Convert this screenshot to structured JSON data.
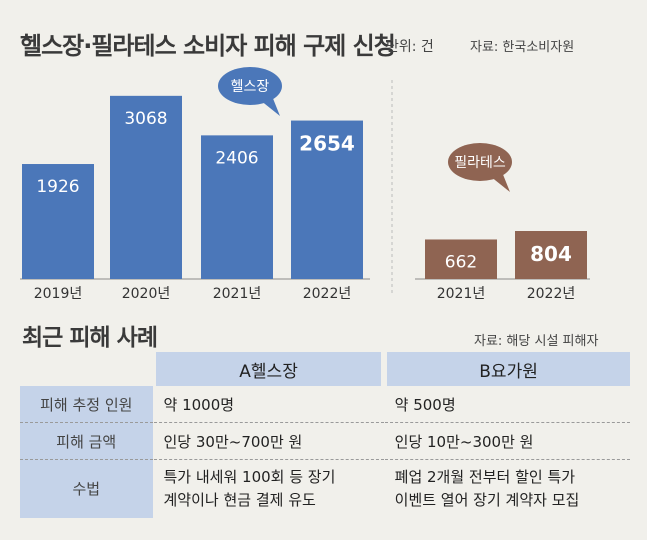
{
  "header": {
    "title": "헬스장·필라테스 소비자 피해 구제 신청",
    "unit": "단위: 건",
    "source": "자료: 한국소비자원"
  },
  "chart_data": [
    {
      "type": "bar",
      "name": "헬스장",
      "categories": [
        "2019년",
        "2020년",
        "2021년",
        "2022년"
      ],
      "values": [
        1926,
        3068,
        2406,
        2654
      ],
      "value_labels": [
        "1926",
        "3068",
        "2406",
        "2654"
      ],
      "highlight_index": 3,
      "bar_color": "#4b77b9",
      "bubble_color": "#4b77b9"
    },
    {
      "type": "bar",
      "name": "필라테스",
      "categories": [
        "2021년",
        "2022년"
      ],
      "values": [
        662,
        804
      ],
      "value_labels": [
        "662",
        "804"
      ],
      "highlight_index": 1,
      "bar_color": "#8f6452",
      "bubble_color": "#8f6452"
    }
  ],
  "cases": {
    "title": "최근 피해 사례",
    "source": "자료: 해당 시설 피해자",
    "columns": [
      "A헬스장",
      "B요가원"
    ],
    "rows": [
      {
        "label": "피해 추정 인원",
        "a": "약 1000명",
        "b": "약 500명"
      },
      {
        "label": "피해 금액",
        "a": "인당 30만~700만 원",
        "b": "인당 10만~300만 원"
      },
      {
        "label": "수법",
        "a_lines": [
          "특가 내세워 100회 등 장기",
          "계약이나 현금 결제 유도"
        ],
        "b_lines": [
          "폐업 2개월 전부터 할인 특가",
          "이벤트 열어 장기 계약자 모집"
        ]
      }
    ]
  },
  "colors": {
    "background": "#f1f0eb",
    "table_header": "#c5d3e9"
  }
}
